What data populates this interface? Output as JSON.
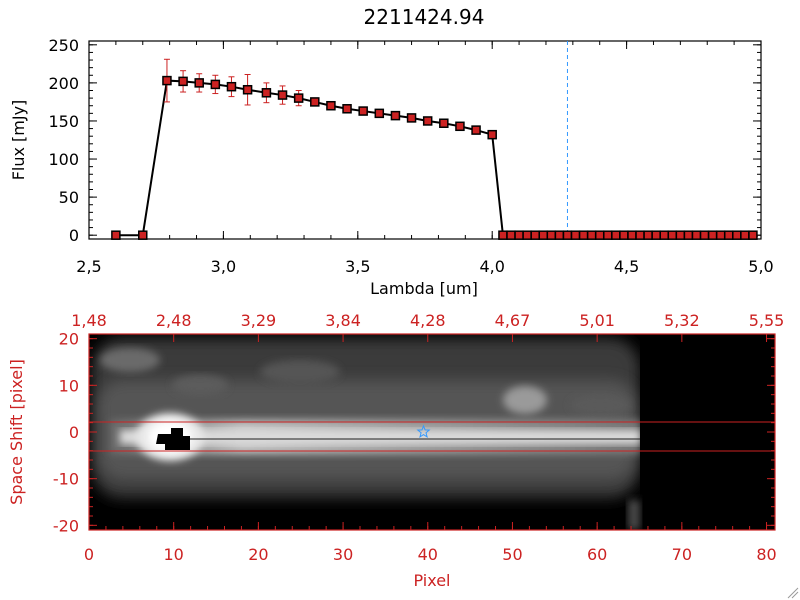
{
  "chart_data": [
    {
      "type": "line",
      "title": "2211424.94",
      "xlabel": "Lambda [um]",
      "ylabel": "Flux [mJy]",
      "xlim": [
        2.5,
        5.0
      ],
      "ylim": [
        -5,
        255
      ],
      "x_ticks": [
        "2.5",
        "3.0",
        "3.5",
        "4.0",
        "4.5",
        "5.0"
      ],
      "y_ticks": [
        "0",
        "50",
        "100",
        "150",
        "200",
        "250"
      ],
      "reference_line": {
        "x": 4.28,
        "style": "dashed",
        "color": "#3399ff"
      },
      "colors": {
        "line": "#000000",
        "marker_fill": "#cc2222",
        "error_bar": "#cc2222"
      },
      "series": [
        {
          "x": [
            2.6,
            2.7,
            2.79,
            2.85,
            2.91,
            2.97,
            3.03,
            3.09,
            3.16,
            3.22,
            3.28,
            3.34,
            3.4,
            3.46,
            3.52,
            3.58,
            3.64,
            3.7,
            3.76,
            3.82,
            3.88,
            3.94,
            4.0,
            4.04,
            4.07,
            4.1,
            4.13,
            4.16,
            4.19,
            4.22,
            4.25,
            4.28,
            4.31,
            4.34,
            4.37,
            4.4,
            4.43,
            4.46,
            4.49,
            4.52,
            4.55,
            4.58,
            4.61,
            4.64,
            4.67,
            4.7,
            4.73,
            4.76,
            4.79,
            4.82,
            4.85,
            4.88,
            4.91,
            4.94,
            4.97
          ],
          "y": [
            0,
            0,
            203,
            202,
            200,
            198,
            195,
            191,
            187,
            184,
            180,
            175,
            170,
            166,
            163,
            160,
            157,
            154,
            150,
            147,
            143,
            138,
            132,
            0,
            0,
            0,
            0,
            0,
            0,
            0,
            0,
            0,
            0,
            0,
            0,
            0,
            0,
            0,
            0,
            0,
            0,
            0,
            0,
            0,
            0,
            0,
            0,
            0,
            0,
            0,
            0,
            0,
            0,
            0,
            0
          ],
          "errors": [
            0,
            0,
            28,
            14,
            12,
            12,
            13,
            20,
            13,
            12,
            10,
            5,
            3,
            3,
            3,
            3,
            3,
            3,
            3,
            3,
            3,
            3,
            3,
            0,
            0,
            0,
            0,
            0,
            0,
            0,
            0,
            0,
            0,
            0,
            0,
            0,
            0,
            0,
            0,
            0,
            0,
            0,
            0,
            0,
            0,
            0,
            0,
            0,
            0,
            0,
            0,
            0,
            0,
            0,
            0
          ]
        }
      ]
    },
    {
      "type": "heatmap",
      "xlabel": "Pixel",
      "ylabel": "Space Shift [pixel]",
      "xlim": [
        0,
        81
      ],
      "ylim": [
        -21,
        21
      ],
      "x_ticks": [
        "0",
        "10",
        "20",
        "30",
        "40",
        "50",
        "60",
        "70",
        "80"
      ],
      "y_ticks": [
        "-20",
        "-10",
        "0",
        "10",
        "20"
      ],
      "top_axis_ticks": [
        "1.48",
        "2.48",
        "3.29",
        "3.84",
        "4.28",
        "4.67",
        "5.01",
        "5.32",
        "5.55"
      ],
      "colormap": "grayscale",
      "extraction_lines": [
        3,
        -3
      ],
      "marker": {
        "type": "star",
        "x": 39.5,
        "y": 0,
        "color": "#3399ff"
      },
      "colors": {
        "axis": "#cc2222",
        "lines": "#cc2222"
      }
    }
  ]
}
